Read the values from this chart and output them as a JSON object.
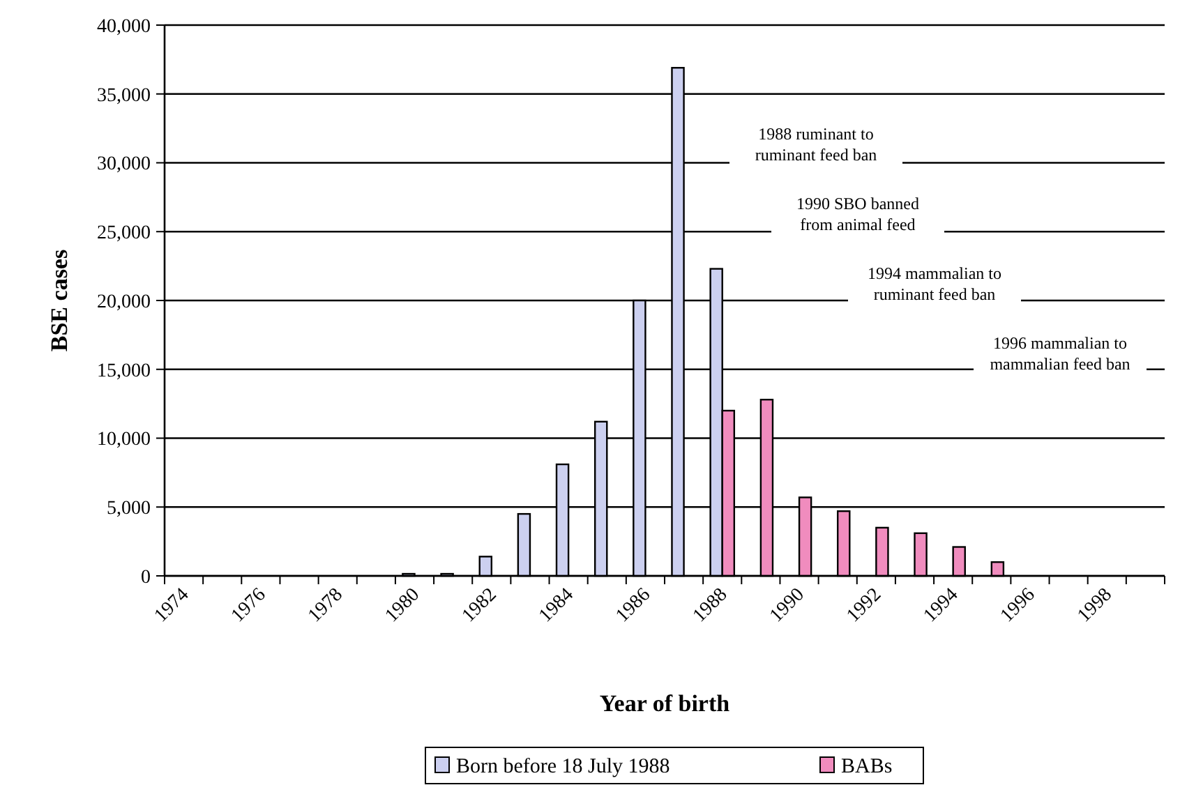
{
  "chart_data": {
    "type": "bar",
    "xlabel": "Year of birth",
    "ylabel": "BSE cases",
    "categories": [
      "1974",
      null,
      "1976",
      null,
      "1978",
      null,
      "1980",
      null,
      "1982",
      null,
      "1984",
      null,
      "1986",
      null,
      "1988",
      null,
      "1990",
      null,
      "1992",
      null,
      "1994",
      null,
      "1996",
      null,
      "1998",
      null
    ],
    "series": [
      {
        "name": "Born before 18 July 1988",
        "color": "#ccd0f0",
        "values": [
          0,
          0,
          0,
          0,
          0,
          0,
          150,
          150,
          1400,
          4500,
          8100,
          11200,
          20000,
          36900,
          22300,
          null,
          null,
          null,
          null,
          null,
          null,
          null,
          null,
          null,
          null,
          null
        ]
      },
      {
        "name": "BABs",
        "color": "#f08cbe",
        "values": [
          null,
          null,
          null,
          null,
          null,
          null,
          null,
          null,
          null,
          null,
          null,
          null,
          null,
          null,
          12000,
          12800,
          5700,
          4700,
          3500,
          3100,
          2100,
          1000,
          0,
          0,
          0,
          0
        ]
      }
    ],
    "ylim": [
      0,
      40000
    ],
    "yticks": [
      {
        "value": 0,
        "label": "0"
      },
      {
        "value": 5000,
        "label": "5,000"
      },
      {
        "value": 10000,
        "label": "10,000"
      },
      {
        "value": 15000,
        "label": "15,000"
      },
      {
        "value": 20000,
        "label": "20,000"
      },
      {
        "value": 25000,
        "label": "25,000"
      },
      {
        "value": 30000,
        "label": "30,000"
      },
      {
        "value": 35000,
        "label": "35,000"
      },
      {
        "value": 40000,
        "label": "40,000"
      }
    ],
    "grid": "y",
    "legend": "bottom",
    "annotations": [
      "1988 ruminant to\nruminant feed ban",
      "1990 SBO banned\nfrom animal feed",
      "1994 mammalian to\nruminant feed ban",
      "1996 mammalian to\nmammalian feed ban"
    ]
  }
}
